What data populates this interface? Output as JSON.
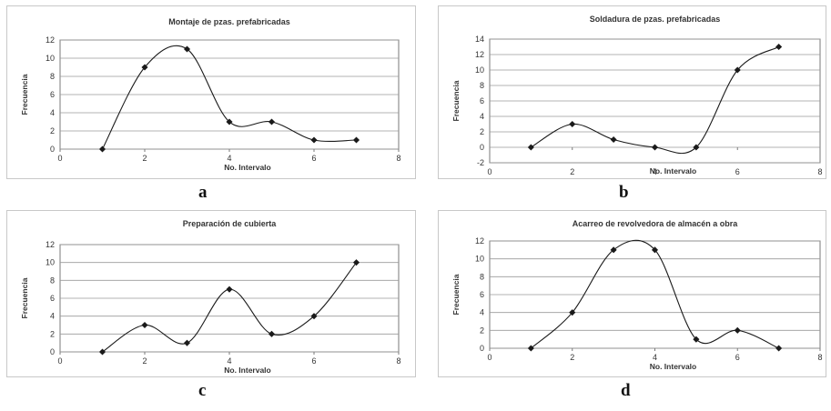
{
  "chart_data": [
    {
      "type": "line",
      "title": "Montaje de pzas. prefabricadas",
      "xlabel": "No. Intervalo",
      "ylabel": "Frecuencia",
      "x": [
        1,
        2,
        3,
        4,
        5,
        6,
        7
      ],
      "series": [
        {
          "values": [
            0,
            9,
            11,
            3,
            3,
            1,
            1
          ]
        }
      ],
      "xlim": [
        0,
        8
      ],
      "ylim": [
        0,
        12
      ],
      "xticks": [
        0,
        2,
        4,
        6,
        8
      ],
      "yticks": [
        0,
        2,
        4,
        6,
        8,
        10,
        12
      ],
      "grid": true,
      "smooth": true,
      "panel_label": "a"
    },
    {
      "type": "line",
      "title": "Soldadura de pzas. prefabricadas",
      "xlabel": "No. Intervalo",
      "ylabel": "Frecuencia",
      "x": [
        1,
        2,
        3,
        4,
        5,
        6,
        7
      ],
      "series": [
        {
          "values": [
            0,
            3,
            1,
            0,
            0,
            10,
            13
          ]
        }
      ],
      "xlim": [
        0,
        8
      ],
      "ylim": [
        -2,
        14
      ],
      "xticks": [
        0,
        2,
        4,
        6,
        8
      ],
      "yticks": [
        -2,
        0,
        2,
        4,
        6,
        8,
        10,
        12,
        14
      ],
      "grid": true,
      "smooth": true,
      "panel_label": "b"
    },
    {
      "type": "line",
      "title": "Preparación de cubierta",
      "xlabel": "No. Intervalo",
      "ylabel": "Frecuencia",
      "x": [
        1,
        2,
        3,
        4,
        5,
        6,
        7
      ],
      "series": [
        {
          "values": [
            0,
            3,
            1,
            7,
            2,
            4,
            10
          ]
        }
      ],
      "xlim": [
        0,
        8
      ],
      "ylim": [
        0,
        12
      ],
      "xticks": [
        0,
        2,
        4,
        6,
        8
      ],
      "yticks": [
        0,
        2,
        4,
        6,
        8,
        10,
        12
      ],
      "grid": true,
      "smooth": true,
      "panel_label": "c"
    },
    {
      "type": "line",
      "title": "Acarreo de revolvedora de almacén a obra",
      "xlabel": "No. Intervalo",
      "ylabel": "Frecuencia",
      "x": [
        1,
        2,
        3,
        4,
        5,
        6,
        7
      ],
      "series": [
        {
          "values": [
            0,
            4,
            11,
            11,
            1,
            2,
            0
          ]
        }
      ],
      "xlim": [
        0,
        8
      ],
      "ylim": [
        0,
        12
      ],
      "xticks": [
        0,
        2,
        4,
        6,
        8
      ],
      "yticks": [
        0,
        2,
        4,
        6,
        8,
        10,
        12
      ],
      "grid": true,
      "smooth": true,
      "panel_label": "d"
    }
  ],
  "colors": {
    "line": "#1a1a1a",
    "marker": "#1a1a1a",
    "grid": "#9a9a9a",
    "plot_border": "#7a7a7a",
    "text": "#333333"
  }
}
